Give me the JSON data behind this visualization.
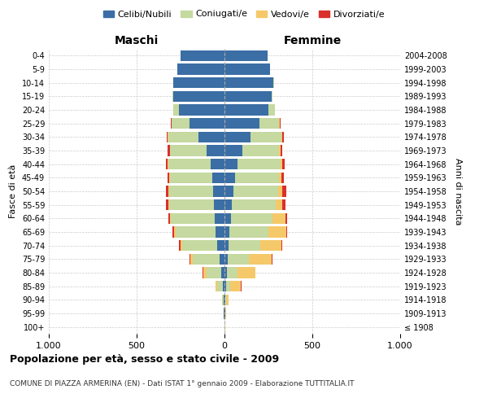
{
  "age_groups": [
    "100+",
    "95-99",
    "90-94",
    "85-89",
    "80-84",
    "75-79",
    "70-74",
    "65-69",
    "60-64",
    "55-59",
    "50-54",
    "45-49",
    "40-44",
    "35-39",
    "30-34",
    "25-29",
    "20-24",
    "15-19",
    "10-14",
    "5-9",
    "0-4"
  ],
  "birth_years": [
    "≤ 1908",
    "1909-1913",
    "1914-1918",
    "1919-1923",
    "1924-1928",
    "1929-1933",
    "1934-1938",
    "1939-1943",
    "1944-1948",
    "1949-1953",
    "1954-1958",
    "1959-1963",
    "1964-1968",
    "1969-1973",
    "1974-1978",
    "1979-1983",
    "1984-1988",
    "1989-1993",
    "1994-1998",
    "1999-2003",
    "2004-2008"
  ],
  "maschi": {
    "celibi": [
      2,
      3,
      5,
      10,
      20,
      30,
      40,
      50,
      55,
      60,
      65,
      70,
      80,
      100,
      150,
      200,
      260,
      290,
      290,
      270,
      250
    ],
    "coniugati": [
      0,
      2,
      8,
      30,
      80,
      150,
      200,
      230,
      250,
      255,
      250,
      240,
      240,
      210,
      170,
      100,
      30,
      5,
      2,
      0,
      0
    ],
    "vedovi": [
      0,
      0,
      2,
      10,
      20,
      15,
      10,
      8,
      5,
      5,
      5,
      3,
      2,
      2,
      2,
      2,
      0,
      0,
      0,
      0,
      0
    ],
    "divorziati": [
      0,
      0,
      0,
      2,
      3,
      5,
      8,
      8,
      10,
      15,
      15,
      12,
      12,
      10,
      8,
      5,
      2,
      0,
      0,
      0,
      0
    ]
  },
  "femmine": {
    "nubili": [
      2,
      3,
      5,
      8,
      15,
      20,
      25,
      30,
      35,
      40,
      50,
      60,
      75,
      100,
      150,
      200,
      250,
      270,
      280,
      260,
      245
    ],
    "coniugate": [
      0,
      2,
      5,
      25,
      60,
      120,
      180,
      220,
      240,
      250,
      255,
      250,
      245,
      210,
      175,
      110,
      35,
      5,
      2,
      0,
      0
    ],
    "vedove": [
      2,
      5,
      15,
      60,
      100,
      130,
      120,
      100,
      70,
      40,
      25,
      15,
      10,
      8,
      5,
      3,
      2,
      0,
      0,
      0,
      0
    ],
    "divorziate": [
      0,
      0,
      0,
      2,
      3,
      5,
      5,
      8,
      10,
      15,
      20,
      15,
      12,
      10,
      8,
      5,
      2,
      0,
      0,
      0,
      0
    ]
  },
  "colors": {
    "celibi": "#3a6ea5",
    "coniugati": "#c5d9a0",
    "vedovi": "#f5c96a",
    "divorziati": "#d9302b"
  },
  "xlim": 1000,
  "title": "Popolazione per età, sesso e stato civile - 2009",
  "subtitle": "COMUNE DI PIAZZA ARMERINA (EN) - Dati ISTAT 1° gennaio 2009 - Elaborazione TUTTITALIA.IT",
  "ylabel_left": "Fasce di età",
  "ylabel_right": "Anni di nascita",
  "xlabel_left": "Maschi",
  "xlabel_right": "Femmine",
  "background_color": "#ffffff",
  "grid_color": "#cccccc"
}
